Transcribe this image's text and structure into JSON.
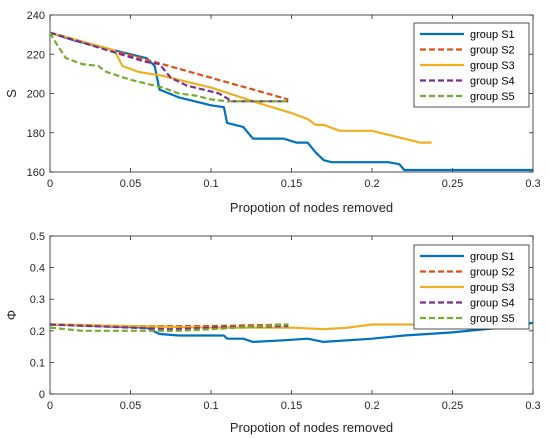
{
  "chart_data": [
    {
      "type": "line",
      "title": "",
      "xlabel": "Propotion of nodes removed",
      "ylabel": "S",
      "xlim": [
        0,
        0.3
      ],
      "ylim": [
        160,
        240
      ],
      "xticks": [
        0,
        0.05,
        0.1,
        0.15,
        0.2,
        0.25,
        0.3
      ],
      "xtick_labels": [
        "0",
        "0.05",
        "0.1",
        "0.15",
        "0.2",
        "0.25",
        "0.3"
      ],
      "yticks": [
        160,
        180,
        200,
        220,
        240
      ],
      "ytick_labels": [
        "160",
        "180",
        "200",
        "220",
        "240"
      ],
      "grid": false,
      "legend_position": "top-right",
      "series": [
        {
          "name": "group S1",
          "color": "#0072BD",
          "dash": "solid",
          "points": [
            [
              0,
              231
            ],
            [
              0.015,
              227
            ],
            [
              0.03,
              224
            ],
            [
              0.045,
              221
            ],
            [
              0.06,
              218
            ],
            [
              0.065,
              214
            ],
            [
              0.068,
              202
            ],
            [
              0.08,
              198
            ],
            [
              0.09,
              196
            ],
            [
              0.1,
              194
            ],
            [
              0.108,
              193
            ],
            [
              0.11,
              185
            ],
            [
              0.12,
              183
            ],
            [
              0.126,
              177
            ],
            [
              0.145,
              177
            ],
            [
              0.153,
              175
            ],
            [
              0.16,
              175
            ],
            [
              0.165,
              170
            ],
            [
              0.17,
              166
            ],
            [
              0.175,
              165
            ],
            [
              0.21,
              165
            ],
            [
              0.217,
              164
            ],
            [
              0.22,
              161
            ],
            [
              0.3,
              161
            ]
          ]
        },
        {
          "name": "group S2",
          "color": "#D95319",
          "dash": "dashed",
          "points": [
            [
              0,
              231
            ],
            [
              0.148,
              197
            ]
          ]
        },
        {
          "name": "group S3",
          "color": "#EDB120",
          "dash": "solid",
          "points": [
            [
              0,
              231
            ],
            [
              0.04,
              222
            ],
            [
              0.045,
              214
            ],
            [
              0.055,
              211
            ],
            [
              0.07,
              209
            ],
            [
              0.08,
              207
            ],
            [
              0.1,
              203
            ],
            [
              0.13,
              195
            ],
            [
              0.15,
              190
            ],
            [
              0.16,
              187
            ],
            [
              0.165,
              184
            ],
            [
              0.17,
              184
            ],
            [
              0.18,
              181
            ],
            [
              0.2,
              181
            ],
            [
              0.205,
              180
            ],
            [
              0.215,
              178
            ],
            [
              0.23,
              175
            ],
            [
              0.237,
              175
            ]
          ]
        },
        {
          "name": "group S4",
          "color": "#7E2F8E",
          "dash": "dashed",
          "points": [
            [
              0,
              231
            ],
            [
              0.06,
              216
            ],
            [
              0.068,
              215
            ],
            [
              0.075,
              208
            ],
            [
              0.085,
              204
            ],
            [
              0.1,
              201
            ],
            [
              0.105,
              200
            ],
            [
              0.113,
              196
            ],
            [
              0.148,
              196
            ]
          ]
        },
        {
          "name": "group S5",
          "color": "#77AC30",
          "dash": "dashed",
          "points": [
            [
              0,
              231
            ],
            [
              0.005,
              224
            ],
            [
              0.01,
              218
            ],
            [
              0.02,
              215
            ],
            [
              0.03,
              214
            ],
            [
              0.035,
              211
            ],
            [
              0.05,
              207
            ],
            [
              0.06,
              205
            ],
            [
              0.07,
              203
            ],
            [
              0.08,
              200
            ],
            [
              0.09,
              199
            ],
            [
              0.1,
              197
            ],
            [
              0.11,
              196
            ],
            [
              0.148,
              196
            ]
          ]
        }
      ]
    },
    {
      "type": "line",
      "title": "",
      "xlabel": "Propotion of nodes removed",
      "ylabel": "Φ",
      "xlim": [
        0,
        0.3
      ],
      "ylim": [
        0,
        0.5
      ],
      "xticks": [
        0,
        0.05,
        0.1,
        0.15,
        0.2,
        0.25,
        0.3
      ],
      "xtick_labels": [
        "0",
        "0.05",
        "0.1",
        "0.15",
        "0.2",
        "0.25",
        "0.3"
      ],
      "yticks": [
        0,
        0.1,
        0.2,
        0.3,
        0.4,
        0.5
      ],
      "ytick_labels": [
        "0",
        "0.1",
        "0.2",
        "0.3",
        "0.4",
        "0.5"
      ],
      "grid": false,
      "legend_position": "top-right",
      "series": [
        {
          "name": "group S1",
          "color": "#0072BD",
          "dash": "solid",
          "points": [
            [
              0,
              0.22
            ],
            [
              0.06,
              0.21
            ],
            [
              0.068,
              0.19
            ],
            [
              0.08,
              0.185
            ],
            [
              0.1,
              0.185
            ],
            [
              0.108,
              0.185
            ],
            [
              0.11,
              0.175
            ],
            [
              0.12,
              0.175
            ],
            [
              0.126,
              0.165
            ],
            [
              0.145,
              0.17
            ],
            [
              0.16,
              0.175
            ],
            [
              0.17,
              0.165
            ],
            [
              0.2,
              0.175
            ],
            [
              0.22,
              0.185
            ],
            [
              0.25,
              0.195
            ],
            [
              0.28,
              0.21
            ],
            [
              0.3,
              0.225
            ]
          ]
        },
        {
          "name": "group S2",
          "color": "#D95319",
          "dash": "dashed",
          "points": [
            [
              0,
              0.22
            ],
            [
              0.05,
              0.215
            ],
            [
              0.1,
              0.215
            ],
            [
              0.148,
              0.22
            ]
          ]
        },
        {
          "name": "group S3",
          "color": "#EDB120",
          "dash": "solid",
          "points": [
            [
              0,
              0.22
            ],
            [
              0.05,
              0.215
            ],
            [
              0.1,
              0.21
            ],
            [
              0.15,
              0.21
            ],
            [
              0.17,
              0.205
            ],
            [
              0.185,
              0.21
            ],
            [
              0.2,
              0.22
            ],
            [
              0.237,
              0.22
            ]
          ]
        },
        {
          "name": "group S4",
          "color": "#7E2F8E",
          "dash": "dashed",
          "points": [
            [
              0,
              0.22
            ],
            [
              0.05,
              0.21
            ],
            [
              0.075,
              0.205
            ],
            [
              0.1,
              0.21
            ],
            [
              0.148,
              0.215
            ]
          ]
        },
        {
          "name": "group S5",
          "color": "#77AC30",
          "dash": "dashed",
          "points": [
            [
              0,
              0.21
            ],
            [
              0.02,
              0.2
            ],
            [
              0.05,
              0.2
            ],
            [
              0.08,
              0.2
            ],
            [
              0.1,
              0.205
            ],
            [
              0.148,
              0.22
            ]
          ]
        }
      ]
    }
  ]
}
